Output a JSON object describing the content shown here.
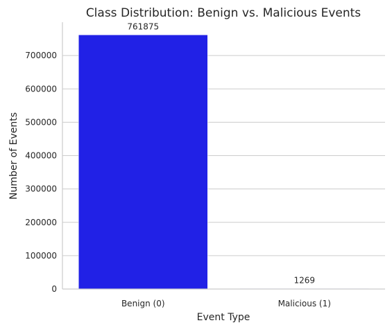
{
  "chart_data": {
    "type": "bar",
    "title": "Class Distribution: Benign vs. Malicious Events",
    "xlabel": "Event Type",
    "ylabel": "Number of Events",
    "categories": [
      "Benign (0)",
      "Malicious (1)"
    ],
    "values": [
      761875,
      1269
    ],
    "data_labels": [
      "761875",
      "1269"
    ],
    "bar_color": "#2121e6",
    "ylim": [
      0,
      800000
    ],
    "yticks": [
      0,
      100000,
      200000,
      300000,
      400000,
      500000,
      600000,
      700000
    ],
    "ytick_labels": [
      "0",
      "100000",
      "200000",
      "300000",
      "400000",
      "500000",
      "600000",
      "700000"
    ],
    "grid": "horizontal",
    "legend": "none"
  }
}
